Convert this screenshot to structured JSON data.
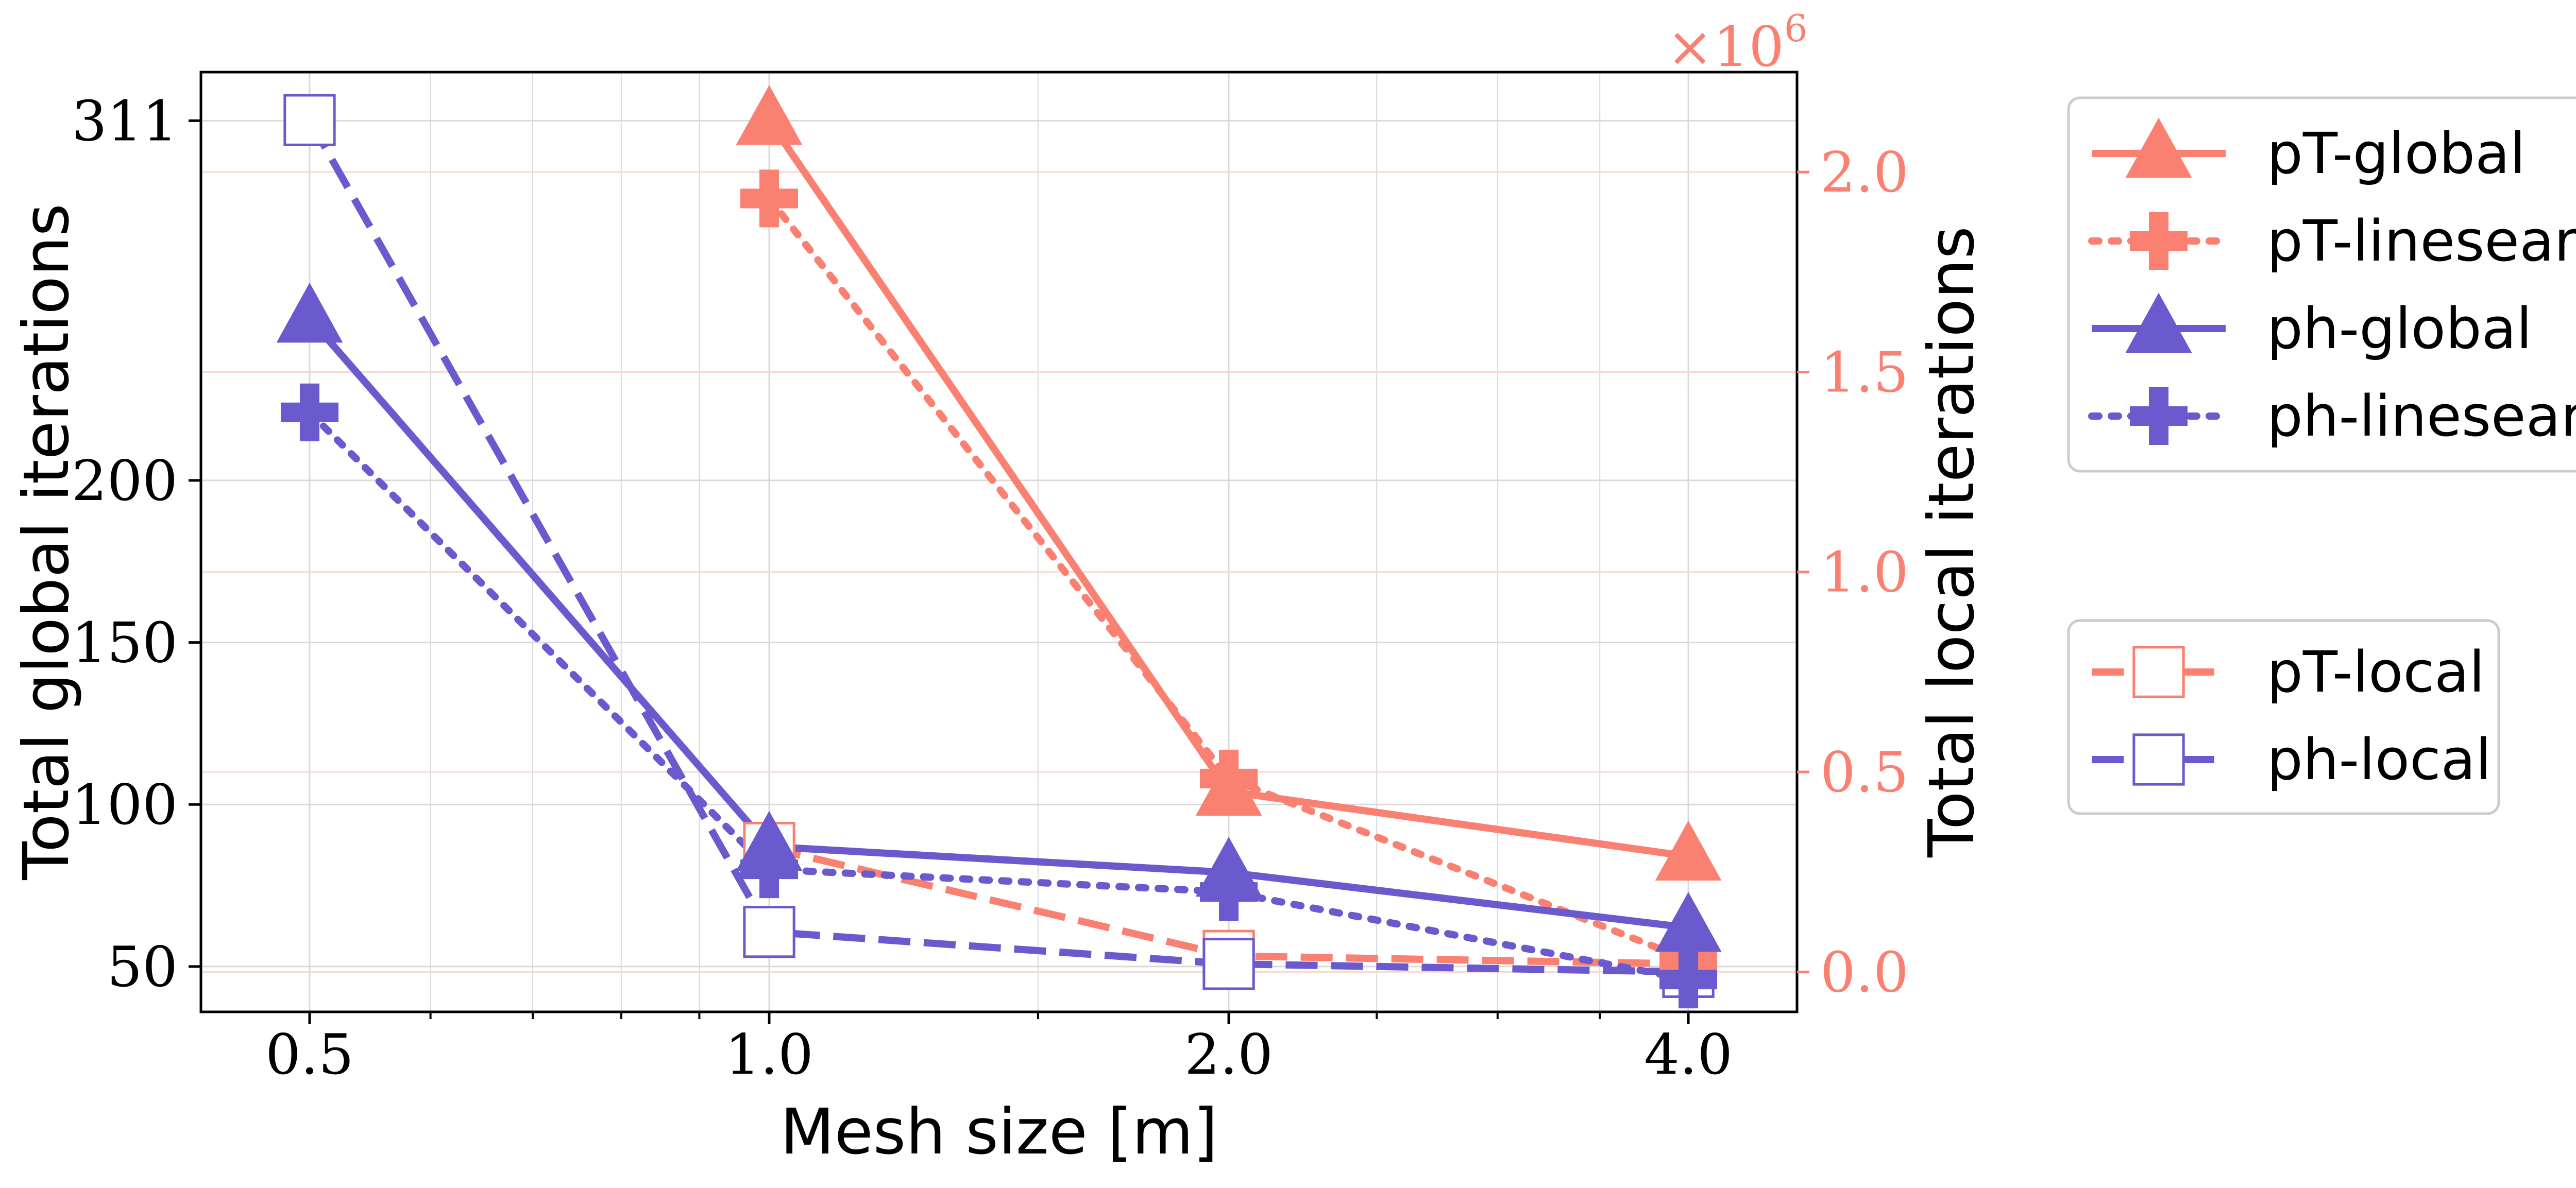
{
  "chart_data": {
    "type": "line",
    "x_scale": "log",
    "xlabel": "Mesh size [m]",
    "ylabel_left": "Total global iterations",
    "ylabel_right": "Total local iterations",
    "right_axis_multiplier": "×10",
    "right_axis_exponent": "6",
    "x_values": [
      0.5,
      1.0,
      2.0,
      4.0
    ],
    "x_tick_labels": [
      "0.5",
      "1.0",
      "2.0",
      "4.0"
    ],
    "y_left_range": [
      36,
      326
    ],
    "y_left_ticks": [
      50,
      100,
      150,
      200,
      311
    ],
    "y_left_tick_labels": [
      "50",
      "100",
      "150",
      "200",
      "311"
    ],
    "y_right_range": [
      -0.1,
      2.25
    ],
    "y_right_ticks": [
      0.0,
      0.5,
      1.0,
      1.5,
      2.0
    ],
    "y_right_tick_labels": [
      "0.0",
      "0.5",
      "1.0",
      "1.5",
      "2.0"
    ],
    "colors": {
      "pT": "#fa8072",
      "ph": "#6a5acd",
      "axis": "#000000",
      "grid": "#d9d9d9",
      "grid_right": "#fbd8d3"
    },
    "series": [
      {
        "name": "pT-global",
        "axis": "left",
        "group": "pT",
        "style": "solid",
        "marker": "triangle",
        "x": [
          1.0,
          2.0,
          4.0
        ],
        "values": [
          311,
          104,
          84
        ]
      },
      {
        "name": "pT-linesearch",
        "axis": "left",
        "group": "pT",
        "style": "dotted",
        "marker": "plus",
        "x": [
          1.0,
          2.0,
          4.0
        ],
        "values": [
          287,
          108,
          52
        ]
      },
      {
        "name": "ph-global",
        "axis": "left",
        "group": "ph",
        "style": "solid",
        "marker": "triangle",
        "x": [
          0.5,
          1.0,
          2.0,
          4.0
        ],
        "values": [
          250,
          87,
          79,
          62
        ]
      },
      {
        "name": "ph-linesearch",
        "axis": "left",
        "group": "ph",
        "style": "dotted",
        "marker": "plus",
        "x": [
          0.5,
          1.0,
          2.0,
          4.0
        ],
        "values": [
          221,
          80,
          73,
          46
        ]
      },
      {
        "name": "pT-local",
        "axis": "right",
        "group": "pT",
        "style": "dashed",
        "marker": "square-open",
        "x": [
          1.0,
          2.0,
          4.0
        ],
        "values": [
          0.31,
          0.04,
          0.02
        ]
      },
      {
        "name": "ph-local",
        "axis": "right",
        "group": "ph",
        "style": "dashed",
        "marker": "square-open",
        "x": [
          0.5,
          1.0,
          2.0,
          4.0
        ],
        "values": [
          2.13,
          0.1,
          0.02,
          0.0
        ]
      }
    ],
    "legend_groups": [
      [
        "pT-global",
        "pT-linesearch",
        "ph-global",
        "ph-linesearch"
      ],
      [
        "pT-local",
        "ph-local"
      ]
    ],
    "legend_placement": "right of plot"
  }
}
